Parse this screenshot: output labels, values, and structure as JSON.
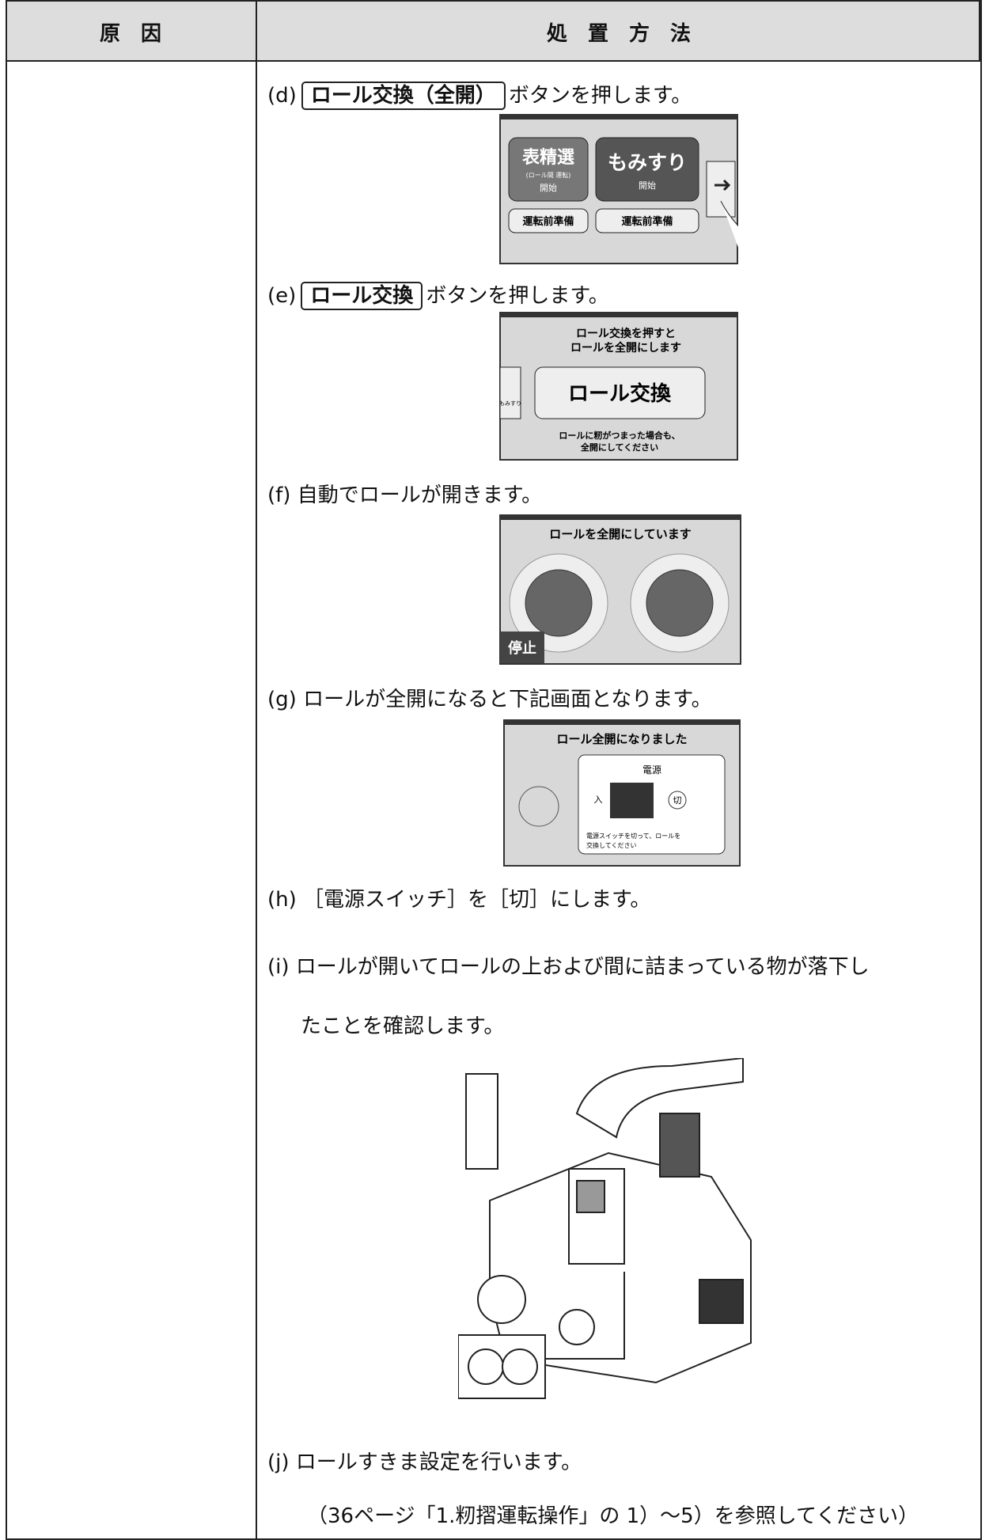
{
  "header": {
    "cause": "原　因",
    "action": "処　置　方　法"
  },
  "steps": [
    {
      "label": "(d)",
      "button": "ロール交換（全開）",
      "text": "ボタンを押します。"
    },
    {
      "label": "(e)",
      "button": "ロール交換",
      "text": "ボタンを押します。"
    },
    {
      "label": "(f)",
      "text": "自動でロールが開きます。"
    },
    {
      "label": "(g)",
      "text": "ロールが全開になると下記画面となります。"
    },
    {
      "label": "(h)",
      "text": "［電源スイッチ］を［切］にします。"
    },
    {
      "label": "(i)",
      "text": "ロールが開いてロールの上および間に詰まっている物が落下し",
      "text2": "たことを確認します。"
    },
    {
      "label": "(j)",
      "text": "ロールすきま設定を行います。",
      "note": "（36ページ「1.籾摺運転操作」の 1）～5）を参照してください）"
    }
  ],
  "screens": [
    {
      "btn1": "表精選",
      "btn1_sub": "(ロール間 運転)",
      "btn1_start": "開始",
      "btn2": "もみすり",
      "btn2_start": "開始",
      "prep1": "運転前準備",
      "prep2": "運転前準備"
    },
    {
      "msg1": "ロール交換を押すと",
      "msg2": "ロールを全開にします",
      "side": "もみすり",
      "button": "ロール交換",
      "foot1": "ロールに籾がつまった場合も、",
      "foot2": "全開にしてください"
    },
    {
      "title": "ロールを全開にしています",
      "stop": "停止"
    },
    {
      "title": "ロール全開になりました",
      "power": "電源",
      "on": "入",
      "off": "切",
      "foot1": "電源スイッチを切って、ロールを",
      "foot2": "交換してください"
    }
  ]
}
